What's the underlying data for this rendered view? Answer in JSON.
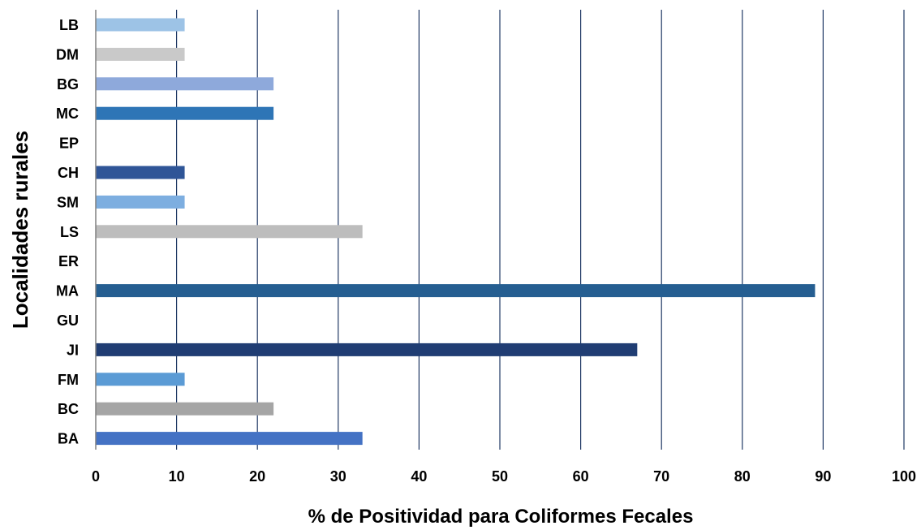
{
  "chart_data": {
    "type": "bar",
    "orientation": "horizontal",
    "categories": [
      "LB",
      "DM",
      "BG",
      "MC",
      "EP",
      "CH",
      "SM",
      "LS",
      "ER",
      "MA",
      "GU",
      "JI",
      "FM",
      "BC",
      "BA"
    ],
    "values": [
      11,
      11,
      22,
      22,
      0,
      11,
      11,
      33,
      0,
      89,
      0,
      67,
      11,
      22,
      33
    ],
    "colors": [
      "#9DC3E6",
      "#C9C9C9",
      "#8EA9DB",
      "#2E75B6",
      "#4472C4",
      "#2F5597",
      "#7DAEE0",
      "#BDBDBD",
      "#4472C4",
      "#255E91",
      "#4472C4",
      "#203D73",
      "#5B9BD5",
      "#A5A5A5",
      "#4472C4"
    ],
    "xlabel": "% de Positividad para Coliformes  Fecales",
    "ylabel": "Localidades rurales",
    "xlim": [
      0,
      100
    ],
    "xticks": [
      "0",
      "10",
      "20",
      "30",
      "40",
      "50",
      "60",
      "70",
      "80",
      "90",
      "100"
    ],
    "grid": "vertical",
    "gridline_color": "#1F3864",
    "legend": "none"
  }
}
